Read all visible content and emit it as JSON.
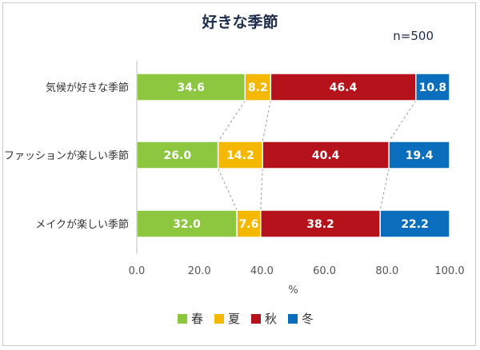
{
  "chart_data": {
    "type": "bar",
    "orientation": "horizontal",
    "stacked": true,
    "title": "好きな季節",
    "annotation": "n=500",
    "xlabel": "%",
    "xlim": [
      0,
      100
    ],
    "xticks": [
      "0.0",
      "20.0",
      "40.0",
      "60.0",
      "80.0",
      "100.0"
    ],
    "categories": [
      "気候が好きな季節",
      "ファッションが楽しい季節",
      "メイクが楽しい季節"
    ],
    "series": [
      {
        "name": "春",
        "color": "#8dc63f",
        "values": [
          34.6,
          26.0,
          32.0
        ],
        "labels": [
          "34.6",
          "26.0",
          "32.0"
        ]
      },
      {
        "name": "夏",
        "color": "#f5b800",
        "values": [
          8.2,
          14.2,
          7.6
        ],
        "labels": [
          "8.2",
          "14.2",
          "7.6"
        ]
      },
      {
        "name": "秋",
        "color": "#b5121b",
        "values": [
          46.4,
          40.4,
          38.2
        ],
        "labels": [
          "46.4",
          "40.4",
          "38.2"
        ]
      },
      {
        "name": "冬",
        "color": "#0a6ebd",
        "values": [
          10.8,
          19.4,
          22.2
        ],
        "labels": [
          "10.8",
          "19.4",
          "22.2"
        ]
      }
    ],
    "series_connector_lines": true,
    "grid": false,
    "legend_position": "bottom"
  }
}
